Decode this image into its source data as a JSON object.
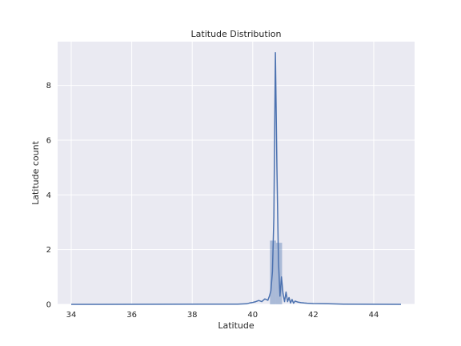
{
  "chart_data": {
    "type": "histogram",
    "title": "Latitude Distribution",
    "xlabel": "Latitude",
    "ylabel": "Latitude count",
    "xlim": [
      33.55,
      45.35
    ],
    "ylim": [
      0,
      9.6
    ],
    "xticks": [
      34,
      36,
      38,
      40,
      42,
      44
    ],
    "yticks": [
      0,
      2,
      4,
      6,
      8
    ],
    "grid": true,
    "legend": "none",
    "colors": {
      "bar": "#4c72b0",
      "line": "#4c72b0",
      "background": "#eaeaf2",
      "grid": "#ffffff"
    },
    "bars": [
      {
        "x0": 40.57,
        "x1": 40.77,
        "value": 2.33
      },
      {
        "x0": 40.77,
        "x1": 40.97,
        "value": 2.25
      }
    ],
    "kde": {
      "x": [
        34.0,
        39.5,
        39.8,
        39.9,
        40.0,
        40.1,
        40.2,
        40.3,
        40.4,
        40.5,
        40.55,
        40.6,
        40.65,
        40.7,
        40.75,
        40.8,
        40.85,
        40.9,
        40.95,
        41.0,
        41.05,
        41.1,
        41.15,
        41.2,
        41.25,
        41.3,
        41.35,
        41.4,
        41.5,
        41.6,
        41.7,
        41.8,
        42.0,
        42.5,
        43.0,
        44.9
      ],
      "y": [
        0.0,
        0.01,
        0.02,
        0.05,
        0.07,
        0.1,
        0.14,
        0.1,
        0.2,
        0.15,
        0.3,
        0.5,
        1.2,
        3.2,
        9.2,
        5.0,
        1.6,
        0.3,
        1.0,
        0.4,
        0.1,
        0.45,
        0.1,
        0.25,
        0.05,
        0.18,
        0.04,
        0.12,
        0.08,
        0.06,
        0.05,
        0.04,
        0.03,
        0.02,
        0.01,
        0.0
      ]
    }
  }
}
